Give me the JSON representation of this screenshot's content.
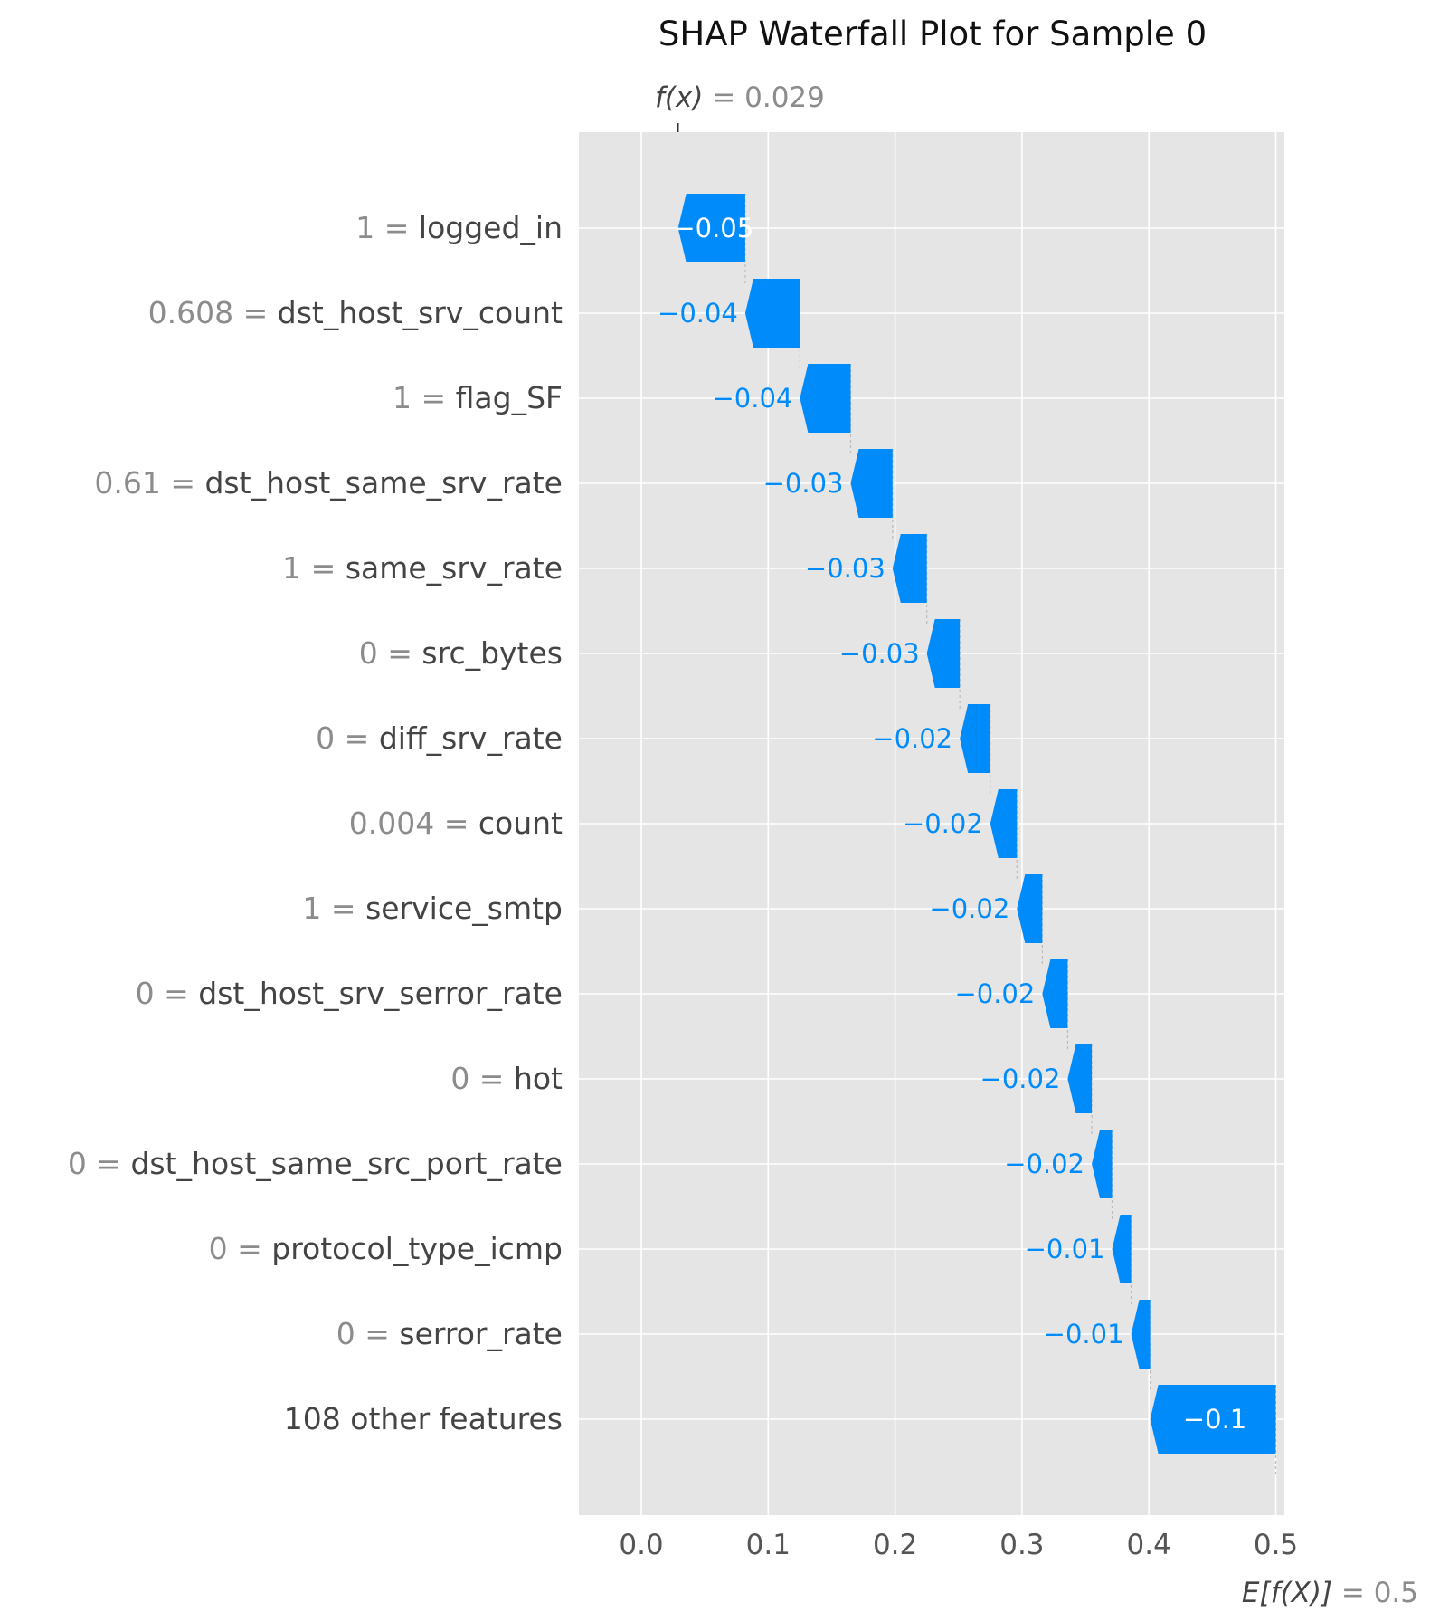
{
  "chart_data": {
    "type": "waterfall",
    "title": "SHAP Waterfall Plot for Sample 0",
    "fx_prefix": "f(x)",
    "fx_value": "0.029",
    "fx_numeric": 0.029,
    "ex_prefix": "E[f(X)]",
    "ex_value": "0.5",
    "ex_numeric": 0.5,
    "x_ticks": [
      "0.0",
      "0.1",
      "0.2",
      "0.3",
      "0.4",
      "0.5"
    ],
    "xlim": [
      -0.05,
      0.505
    ],
    "bar_color": "#008bfb",
    "label_color": "#008bfb",
    "panel_color": "#e5e5e5",
    "grid": true,
    "features": [
      {
        "value": "1",
        "name": "logged_in",
        "start": 0.0819,
        "end": 0.029,
        "label": "−0.05",
        "label_inside": true
      },
      {
        "value": "0.608",
        "name": "dst_host_srv_count",
        "start": 0.125,
        "end": 0.0819,
        "label": "−0.04",
        "label_inside": false
      },
      {
        "value": "1",
        "name": "flag_SF",
        "start": 0.165,
        "end": 0.125,
        "label": "−0.04",
        "label_inside": false
      },
      {
        "value": "0.61",
        "name": "dst_host_same_srv_rate",
        "start": 0.198,
        "end": 0.165,
        "label": "−0.03",
        "label_inside": false
      },
      {
        "value": "1",
        "name": "same_srv_rate",
        "start": 0.225,
        "end": 0.198,
        "label": "−0.03",
        "label_inside": false
      },
      {
        "value": "0",
        "name": "src_bytes",
        "start": 0.251,
        "end": 0.225,
        "label": "−0.03",
        "label_inside": false
      },
      {
        "value": "0",
        "name": "diff_srv_rate",
        "start": 0.275,
        "end": 0.251,
        "label": "−0.02",
        "label_inside": false
      },
      {
        "value": "0.004",
        "name": "count",
        "start": 0.296,
        "end": 0.275,
        "label": "−0.02",
        "label_inside": false
      },
      {
        "value": "1",
        "name": "service_smtp",
        "start": 0.316,
        "end": 0.296,
        "label": "−0.02",
        "label_inside": false
      },
      {
        "value": "0",
        "name": "dst_host_srv_serror_rate",
        "start": 0.336,
        "end": 0.316,
        "label": "−0.02",
        "label_inside": false
      },
      {
        "value": "0",
        "name": "hot",
        "start": 0.355,
        "end": 0.336,
        "label": "−0.02",
        "label_inside": false
      },
      {
        "value": "0",
        "name": "dst_host_same_src_port_rate",
        "start": 0.371,
        "end": 0.355,
        "label": "−0.02",
        "label_inside": false
      },
      {
        "value": "0",
        "name": "protocol_type_icmp",
        "start": 0.386,
        "end": 0.371,
        "label": "−0.01",
        "label_inside": false
      },
      {
        "value": "0",
        "name": "serror_rate",
        "start": 0.401,
        "end": 0.386,
        "label": "−0.01",
        "label_inside": false
      },
      {
        "value": "",
        "name": "108 other features",
        "start": 0.5,
        "end": 0.401,
        "label": "−0.1",
        "label_inside": true
      }
    ]
  }
}
